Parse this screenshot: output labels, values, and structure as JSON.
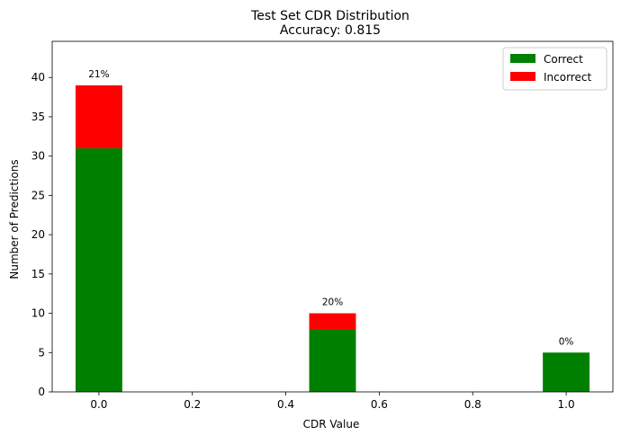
{
  "chart_data": {
    "type": "bar",
    "stacked": true,
    "title": "Test Set CDR Distribution",
    "subtitle": "Accuracy: 0.815",
    "xlabel": "CDR Value",
    "ylabel": "Number of Predictions",
    "x": [
      0.0,
      0.5,
      1.0
    ],
    "xlim": [
      -0.1,
      1.1
    ],
    "ylim": [
      0,
      44.6
    ],
    "bar_width": 0.1,
    "xticks": [
      "0.0",
      "0.2",
      "0.4",
      "0.6",
      "0.8",
      "1.0"
    ],
    "yticks": [
      "0",
      "5",
      "10",
      "15",
      "20",
      "25",
      "30",
      "35",
      "40"
    ],
    "series": [
      {
        "name": "Correct",
        "color": "#008000",
        "values": [
          31,
          8,
          5
        ]
      },
      {
        "name": "Incorrect",
        "color": "#ff0000",
        "values": [
          8,
          2,
          0
        ]
      }
    ],
    "bar_labels": [
      "21%",
      "20%",
      "0%"
    ],
    "legend_position": "top-right",
    "grid": false
  }
}
